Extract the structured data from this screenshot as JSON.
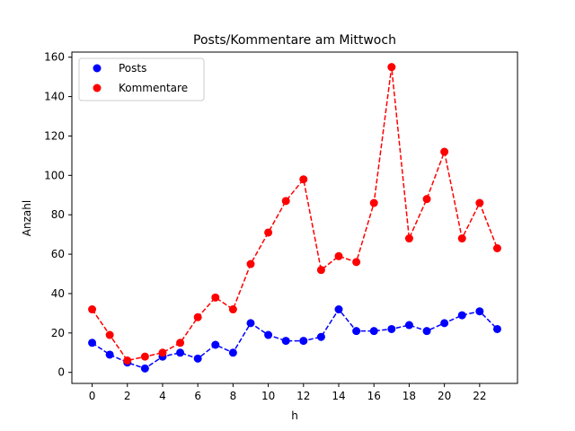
{
  "chart_data": {
    "type": "line",
    "title": "Posts/Kommentare am Mittwoch",
    "xlabel": "h",
    "ylabel": "Anzahl",
    "x": [
      0,
      1,
      2,
      3,
      4,
      5,
      6,
      7,
      8,
      9,
      10,
      11,
      12,
      13,
      14,
      15,
      16,
      17,
      18,
      19,
      20,
      21,
      22,
      23
    ],
    "xlim": [
      -1.15,
      24.15
    ],
    "ylim": [
      -5.6,
      162.6
    ],
    "xticks": [
      "0",
      "2",
      "4",
      "6",
      "8",
      "10",
      "12",
      "14",
      "16",
      "18",
      "20",
      "22"
    ],
    "yticks": [
      "0",
      "20",
      "40",
      "60",
      "80",
      "100",
      "120",
      "140",
      "160"
    ],
    "grid": false,
    "legend_position": "top-left",
    "series": [
      {
        "name": "Posts",
        "color": "#0000ff",
        "line_style": "dashed",
        "marker": "circle",
        "values": [
          15,
          9,
          5,
          2,
          8,
          10,
          7,
          14,
          10,
          25,
          19,
          16,
          16,
          18,
          32,
          21,
          21,
          22,
          24,
          21,
          25,
          29,
          31,
          22
        ]
      },
      {
        "name": "Kommentare",
        "color": "#ff0000",
        "line_style": "dashed",
        "marker": "circle",
        "values": [
          32,
          19,
          6,
          8,
          10,
          15,
          28,
          38,
          32,
          55,
          71,
          87,
          98,
          52,
          59,
          56,
          86,
          155,
          68,
          88,
          112,
          68,
          86,
          63
        ]
      }
    ]
  }
}
